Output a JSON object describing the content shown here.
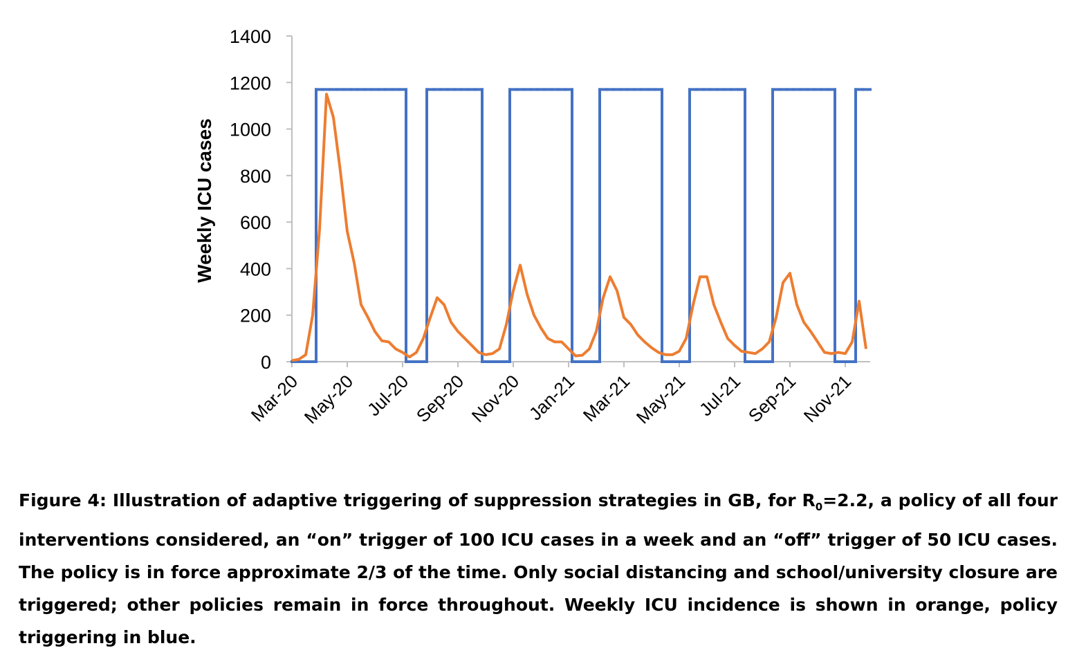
{
  "chart_data": {
    "type": "line",
    "y_label": "Weekly ICU cases",
    "categories": [
      "Mar-20",
      null,
      null,
      null,
      null,
      null,
      null,
      null,
      "May-20",
      null,
      null,
      null,
      null,
      null,
      null,
      null,
      "Jul-20",
      null,
      null,
      null,
      null,
      null,
      null,
      null,
      "Sep-20",
      null,
      null,
      null,
      null,
      null,
      null,
      null,
      "Nov-20",
      null,
      null,
      null,
      null,
      null,
      null,
      null,
      "Jan-21",
      null,
      null,
      null,
      null,
      null,
      null,
      null,
      "Mar-21",
      null,
      null,
      null,
      null,
      null,
      null,
      null,
      "May-21",
      null,
      null,
      null,
      null,
      null,
      null,
      null,
      "Jul-21",
      null,
      null,
      null,
      null,
      null,
      null,
      null,
      "Sep-21",
      null,
      null,
      null,
      null,
      null,
      null,
      null,
      "Nov-21",
      null,
      null,
      null
    ],
    "series": [
      {
        "name": "Weekly ICU incidence",
        "color": "#ed7d31",
        "style": "line",
        "values": [
          5,
          10,
          30,
          200,
          570,
          1150,
          1050,
          820,
          560,
          425,
          245,
          190,
          130,
          90,
          85,
          55,
          40,
          20,
          40,
          100,
          190,
          275,
          245,
          170,
          130,
          100,
          70,
          40,
          30,
          35,
          55,
          160,
          305,
          415,
          290,
          200,
          145,
          100,
          85,
          85,
          55,
          25,
          28,
          55,
          130,
          275,
          365,
          305,
          190,
          160,
          115,
          85,
          60,
          40,
          30,
          30,
          45,
          100,
          245,
          365,
          365,
          245,
          170,
          100,
          70,
          45,
          40,
          35,
          55,
          85,
          190,
          340,
          380,
          245,
          170,
          130,
          85,
          40,
          35,
          40,
          35,
          85,
          260,
          55
        ]
      },
      {
        "name": "Policy triggering",
        "color": "#4472c4",
        "style": "step",
        "values": [
          0,
          0,
          0,
          0,
          1170,
          1170,
          1170,
          1170,
          1170,
          1170,
          1170,
          1170,
          1170,
          1170,
          1170,
          1170,
          1170,
          0,
          0,
          0,
          1170,
          1170,
          1170,
          1170,
          1170,
          1170,
          1170,
          1170,
          0,
          0,
          0,
          0,
          1170,
          1170,
          1170,
          1170,
          1170,
          1170,
          1170,
          1170,
          1170,
          0,
          0,
          0,
          0,
          1170,
          1170,
          1170,
          1170,
          1170,
          1170,
          1170,
          1170,
          1170,
          0,
          0,
          0,
          0,
          1170,
          1170,
          1170,
          1170,
          1170,
          1170,
          1170,
          1170,
          0,
          0,
          0,
          0,
          1170,
          1170,
          1170,
          1170,
          1170,
          1170,
          1170,
          1170,
          1170,
          0,
          0,
          0,
          1170,
          1170
        ]
      }
    ],
    "ylim": [
      0,
      1400
    ],
    "yticks": [
      0,
      200,
      400,
      600,
      800,
      1000,
      1200,
      1400
    ],
    "grid": false
  },
  "caption": {
    "before": "Figure 4: Illustration of adaptive triggering of suppression strategies in GB, for R",
    "subscript": "0",
    "after": "=2.2, a policy of all four interventions considered, an “on” trigger of 100 ICU cases in a week and an “off” trigger of 50 ICU cases.  The policy is in force approximate 2/3 of the time. Only social distancing and school/university closure are triggered; other policies remain in force throughout. Weekly ICU incidence is shown in orange, policy triggering in blue."
  }
}
